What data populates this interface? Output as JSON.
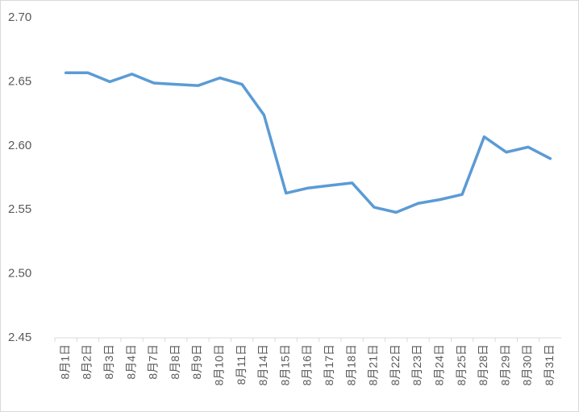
{
  "chart_data": {
    "type": "line",
    "categories": [
      "8月1日",
      "8月2日",
      "8月3日",
      "8月4日",
      "8月7日",
      "8月8日",
      "8月9日",
      "8月10日",
      "8月11日",
      "8月14日",
      "8月15日",
      "8月16日",
      "8月17日",
      "8月18日",
      "8月21日",
      "8月22日",
      "8月23日",
      "8月24日",
      "8月25日",
      "8月28日",
      "8月29日",
      "8月30日",
      "8月31日"
    ],
    "series": [
      {
        "color": "#5b9bd5",
        "values": [
          2.657,
          2.657,
          2.65,
          2.656,
          2.649,
          2.648,
          2.647,
          2.653,
          2.648,
          2.624,
          2.563,
          2.567,
          2.569,
          2.571,
          2.552,
          2.548,
          2.555,
          2.558,
          2.562,
          2.607,
          2.595,
          2.599,
          2.59
        ]
      }
    ],
    "ylim": [
      2.45,
      2.7
    ],
    "yticks": [
      2.45,
      {
        "value": 2.5,
        "label": "2.50"
      },
      2.55,
      {
        "value": 2.6,
        "label": "2.60"
      },
      2.65,
      {
        "value": 2.7,
        "label": "2.70"
      }
    ],
    "grid": false
  }
}
